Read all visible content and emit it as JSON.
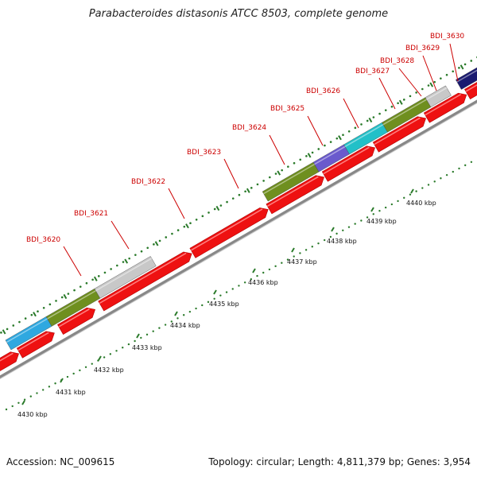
{
  "title": "Parabacteroides distasonis ATCC 8503, complete genome",
  "footer": {
    "accession": "Accession: NC_009615",
    "summary": "Topology: circular; Length: 4,811,379 bp; Genes: 3,954"
  },
  "colors": {
    "cds": "#ee1111",
    "backbone": "#888888",
    "tick": "#2a7a2a",
    "olive": "#6f8f1f",
    "lightgray": "#c8c8c8",
    "skyblue": "#2fa8e0",
    "teal": "#22c0c8",
    "purple": "#6a5acd",
    "navy": "#1a1a70"
  },
  "ruler": {
    "labels": [
      "4430 kbp",
      "4431 kbp",
      "4432 kbp",
      "4433 kbp",
      "4434 kbp",
      "4435 kbp",
      "4436 kbp",
      "4437 kbp",
      "4438 kbp",
      "4439 kbp",
      "4440 kbp"
    ]
  },
  "loci": [
    "BDI_3620",
    "BDI_3621",
    "BDI_3622",
    "BDI_3623",
    "BDI_3624",
    "BDI_3625",
    "BDI_3626",
    "BDI_3627",
    "BDI_3628",
    "BDI_3629",
    "BDI_3630"
  ],
  "cds_track": [
    {
      "s": 0.0,
      "e": 0.06
    },
    {
      "s": 0.07,
      "e": 0.13
    },
    {
      "s": 0.15,
      "e": 0.21
    },
    {
      "s": 0.23,
      "e": 0.4
    },
    {
      "s": 0.41,
      "e": 0.55
    },
    {
      "s": 0.56,
      "e": 0.66
    },
    {
      "s": 0.67,
      "e": 0.76
    },
    {
      "s": 0.77,
      "e": 0.86
    },
    {
      "s": 0.87,
      "e": 0.94
    },
    {
      "s": 0.95,
      "e": 1.0
    }
  ],
  "feature_track": [
    {
      "s": 0.06,
      "e": 0.14,
      "color": "skyblue"
    },
    {
      "s": 0.14,
      "e": 0.235,
      "color": "olive"
    },
    {
      "s": 0.235,
      "e": 0.345,
      "color": "lightgray"
    },
    {
      "s": 0.565,
      "e": 0.665,
      "color": "olive"
    },
    {
      "s": 0.665,
      "e": 0.725,
      "color": "purple"
    },
    {
      "s": 0.725,
      "e": 0.8,
      "color": "teal"
    },
    {
      "s": 0.8,
      "e": 0.885,
      "color": "olive"
    },
    {
      "s": 0.885,
      "e": 0.925,
      "color": "lightgray"
    },
    {
      "s": 0.945,
      "e": 1.0,
      "color": "navy"
    }
  ]
}
